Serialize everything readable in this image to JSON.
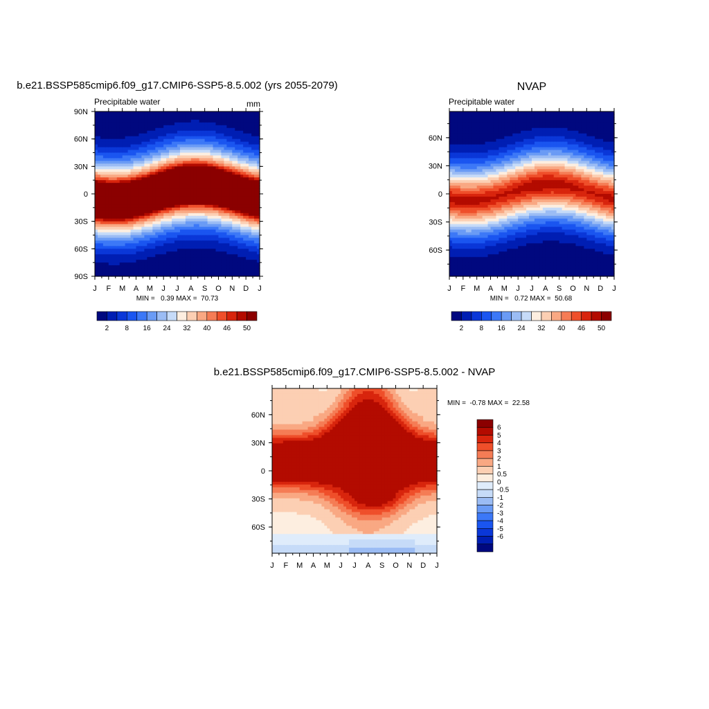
{
  "palettes": {
    "pw": [
      "#00087f",
      "#001eb3",
      "#0a37d8",
      "#1a55f0",
      "#3c78f7",
      "#6a9bf5",
      "#9bbcf4",
      "#c6dbf8",
      "#fdeee0",
      "#fccfb3",
      "#f9a883",
      "#f57c55",
      "#ef4f2a",
      "#d8250d",
      "#b30b00",
      "#8b0000"
    ],
    "diff": [
      "#00087f",
      "#001eb3",
      "#0a37d8",
      "#1a55f0",
      "#3c78f7",
      "#6a9bf5",
      "#9bbcf4",
      "#c6dbf8",
      "#dfecfb",
      "#fdeee0",
      "#fccfb3",
      "#f9a883",
      "#f57c55",
      "#ef4f2a",
      "#d8250d",
      "#b30b00",
      "#8b0000"
    ]
  },
  "chart_data": [
    {
      "type": "heatmap",
      "title": "b.e21.BSSP585cmip6.f09_g17.CMIP6-SSP5-8.5.002 (yrs 2055-2079)",
      "subtitle_left": "Precipitable water",
      "subtitle_right": "mm",
      "x_ticks": [
        "J",
        "F",
        "M",
        "A",
        "M",
        "J",
        "J",
        "A",
        "S",
        "O",
        "N",
        "D",
        "J"
      ],
      "y_ticks": [
        {
          "lat": 90,
          "label": "90N"
        },
        {
          "lat": 60,
          "label": "60N"
        },
        {
          "lat": 30,
          "label": "30N"
        },
        {
          "lat": 0,
          "label": "0"
        },
        {
          "lat": -30,
          "label": "30S"
        },
        {
          "lat": -60,
          "label": "60S"
        },
        {
          "lat": -90,
          "label": "90S"
        }
      ],
      "ylim": [
        -90,
        90
      ],
      "stats": "MIN =   0.39 MAX =  70.73",
      "colorbar": {
        "levels": [
          2,
          5,
          8,
          12,
          16,
          20,
          24,
          28,
          32,
          36,
          40,
          43,
          46,
          48,
          50
        ],
        "labels": [
          "2",
          "8",
          "16",
          "24",
          "32",
          "40",
          "46",
          "50"
        ],
        "label_index": [
          0,
          2,
          4,
          6,
          8,
          10,
          12,
          14
        ]
      },
      "field": {
        "max": 70.73,
        "min": 0.39,
        "eq_width": 26
      }
    },
    {
      "type": "heatmap",
      "title": "NVAP",
      "subtitle_left": "Precipitable water",
      "subtitle_right": "",
      "x_ticks": [
        "J",
        "F",
        "M",
        "A",
        "M",
        "J",
        "J",
        "A",
        "S",
        "O",
        "N",
        "D",
        "J"
      ],
      "y_ticks": [
        {
          "lat": 60,
          "label": "60N"
        },
        {
          "lat": 30,
          "label": "30N"
        },
        {
          "lat": 0,
          "label": "0"
        },
        {
          "lat": -30,
          "label": "30S"
        },
        {
          "lat": -60,
          "label": "60S"
        }
      ],
      "ylim": [
        -88,
        88
      ],
      "stats": "MIN =   0.72 MAX =  50.68",
      "colorbar": {
        "levels": [
          2,
          5,
          8,
          12,
          16,
          20,
          24,
          28,
          32,
          36,
          40,
          43,
          46,
          48,
          50
        ],
        "labels": [
          "2",
          "8",
          "16",
          "24",
          "32",
          "40",
          "46",
          "50"
        ],
        "label_index": [
          0,
          2,
          4,
          6,
          8,
          10,
          12,
          14
        ]
      },
      "field": {
        "max": 50.68,
        "min": 0.72,
        "eq_width": 24
      }
    },
    {
      "type": "heatmap",
      "title": "b.e21.BSSP585cmip6.f09_g17.CMIP6-SSP5-8.5.002 - NVAP",
      "x_ticks": [
        "J",
        "F",
        "M",
        "A",
        "M",
        "J",
        "J",
        "A",
        "S",
        "O",
        "N",
        "D",
        "J"
      ],
      "y_ticks": [
        {
          "lat": 60,
          "label": "60N"
        },
        {
          "lat": 30,
          "label": "30N"
        },
        {
          "lat": 0,
          "label": "0"
        },
        {
          "lat": -30,
          "label": "30S"
        },
        {
          "lat": -60,
          "label": "60S"
        }
      ],
      "ylim": [
        -88,
        88
      ],
      "stats": "MIN =  -0.78 MAX =  22.58",
      "colorbar": {
        "levels": [
          -6,
          -5,
          -4,
          -3,
          -2,
          -1,
          -0.5,
          0,
          0.5,
          1,
          2,
          3,
          4,
          5,
          6
        ],
        "labels": [
          "-6",
          "-5",
          "-4",
          "-3",
          "-2",
          "-1",
          "-0.5",
          "0",
          "0.5",
          "1",
          "2",
          "3",
          "4",
          "5",
          "6"
        ]
      }
    }
  ]
}
